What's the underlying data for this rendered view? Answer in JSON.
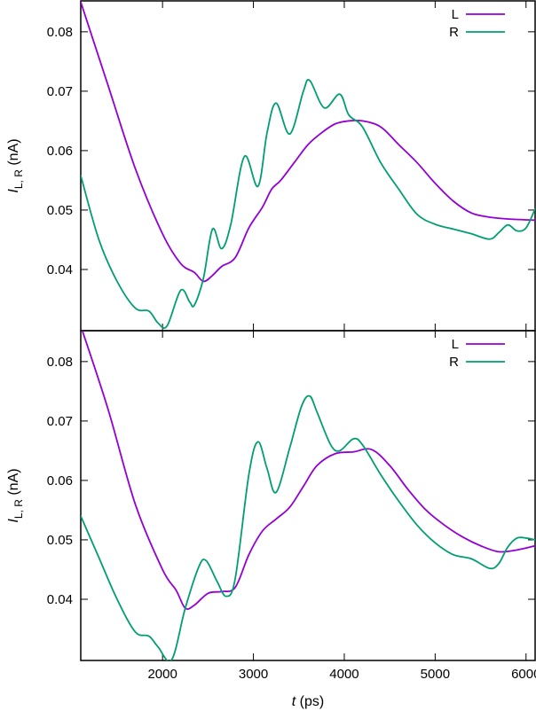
{
  "chart_data": {
    "type": "line",
    "xlabel_var": "t",
    "xlabel_unit": "(ps)",
    "ylabel_var": "I",
    "ylabel_sub": "L, R",
    "ylabel_unit": "(nA)",
    "xlim": [
      1100,
      6100
    ],
    "xticks": [
      2000,
      3000,
      4000,
      5000,
      6000
    ],
    "legend_placement": "top-right",
    "panels": [
      {
        "ylim": [
          0.0297,
          0.0852
        ],
        "yticks": [
          0.04,
          0.05,
          0.06,
          0.07,
          0.08
        ],
        "ytick_labels": [
          "0.04",
          "0.05",
          "0.06",
          "0.07",
          "0.08"
        ],
        "series": [
          {
            "name": "L",
            "color": "#9400d3",
            "points": [
              [
                1100,
                0.085
              ],
              [
                1400,
                0.071
              ],
              [
                1700,
                0.057
              ],
              [
                2000,
                0.046
              ],
              [
                2200,
                0.041
              ],
              [
                2350,
                0.0395
              ],
              [
                2450,
                0.038
              ],
              [
                2550,
                0.039
              ],
              [
                2650,
                0.0405
              ],
              [
                2800,
                0.042
              ],
              [
                2950,
                0.047
              ],
              [
                3100,
                0.0505
              ],
              [
                3200,
                0.0535
              ],
              [
                3300,
                0.055
              ],
              [
                3450,
                0.058
              ],
              [
                3600,
                0.061
              ],
              [
                3750,
                0.063
              ],
              [
                3900,
                0.0645
              ],
              [
                4050,
                0.065
              ],
              [
                4200,
                0.065
              ],
              [
                4400,
                0.064
              ],
              [
                4600,
                0.061
              ],
              [
                4800,
                0.058
              ],
              [
                5000,
                0.0545
              ],
              [
                5200,
                0.0515
              ],
              [
                5400,
                0.0495
              ],
              [
                5600,
                0.0488
              ],
              [
                5800,
                0.0485
              ],
              [
                6100,
                0.0483
              ]
            ]
          },
          {
            "name": "R",
            "color": "#009e73",
            "points": [
              [
                1100,
                0.0558
              ],
              [
                1300,
                0.045
              ],
              [
                1500,
                0.038
              ],
              [
                1700,
                0.0335
              ],
              [
                1850,
                0.033
              ],
              [
                1950,
                0.031
              ],
              [
                2050,
                0.0305
              ],
              [
                2200,
                0.0365
              ],
              [
                2300,
                0.0345
              ],
              [
                2350,
                0.034
              ],
              [
                2450,
                0.0385
              ],
              [
                2550,
                0.0468
              ],
              [
                2650,
                0.0435
              ],
              [
                2750,
                0.0475
              ],
              [
                2900,
                0.059
              ],
              [
                3050,
                0.054
              ],
              [
                3150,
                0.063
              ],
              [
                3250,
                0.068
              ],
              [
                3400,
                0.0628
              ],
              [
                3550,
                0.07
              ],
              [
                3620,
                0.0718
              ],
              [
                3780,
                0.0672
              ],
              [
                3950,
                0.0695
              ],
              [
                4050,
                0.066
              ],
              [
                4200,
                0.064
              ],
              [
                4400,
                0.058
              ],
              [
                4600,
                0.0535
              ],
              [
                4800,
                0.0493
              ],
              [
                5000,
                0.0476
              ],
              [
                5200,
                0.0468
              ],
              [
                5400,
                0.046
              ],
              [
                5600,
                0.0451
              ],
              [
                5700,
                0.0462
              ],
              [
                5800,
                0.0475
              ],
              [
                5900,
                0.0465
              ],
              [
                6000,
                0.047
              ],
              [
                6100,
                0.0502
              ]
            ]
          }
        ]
      },
      {
        "ylim": [
          0.0297,
          0.0852
        ],
        "yticks": [
          0.04,
          0.05,
          0.06,
          0.07,
          0.08
        ],
        "ytick_labels": [
          "0.04",
          "0.05",
          "0.06",
          "0.07",
          "0.08"
        ],
        "series": [
          {
            "name": "L",
            "color": "#9400d3",
            "points": [
              [
                1100,
                0.086
              ],
              [
                1400,
                0.072
              ],
              [
                1700,
                0.056
              ],
              [
                2000,
                0.045
              ],
              [
                2150,
                0.0415
              ],
              [
                2250,
                0.0385
              ],
              [
                2350,
                0.039
              ],
              [
                2500,
                0.041
              ],
              [
                2650,
                0.0413
              ],
              [
                2800,
                0.042
              ],
              [
                2950,
                0.0475
              ],
              [
                3100,
                0.0515
              ],
              [
                3250,
                0.0535
              ],
              [
                3400,
                0.0555
              ],
              [
                3550,
                0.059
              ],
              [
                3700,
                0.0625
              ],
              [
                3900,
                0.0645
              ],
              [
                4100,
                0.0648
              ],
              [
                4300,
                0.0652
              ],
              [
                4500,
                0.0625
              ],
              [
                4700,
                0.0585
              ],
              [
                4900,
                0.055
              ],
              [
                5100,
                0.0525
              ],
              [
                5300,
                0.0505
              ],
              [
                5500,
                0.049
              ],
              [
                5700,
                0.048
              ],
              [
                5900,
                0.0483
              ],
              [
                6100,
                0.049
              ]
            ]
          },
          {
            "name": "R",
            "color": "#009e73",
            "points": [
              [
                1100,
                0.054
              ],
              [
                1300,
                0.047
              ],
              [
                1500,
                0.04
              ],
              [
                1700,
                0.0345
              ],
              [
                1850,
                0.0338
              ],
              [
                1950,
                0.032
              ],
              [
                2100,
                0.0298
              ],
              [
                2250,
                0.0385
              ],
              [
                2400,
                0.0455
              ],
              [
                2480,
                0.0465
              ],
              [
                2600,
                0.043
              ],
              [
                2700,
                0.0405
              ],
              [
                2800,
                0.0435
              ],
              [
                2950,
                0.061
              ],
              [
                3050,
                0.0665
              ],
              [
                3150,
                0.062
              ],
              [
                3250,
                0.058
              ],
              [
                3400,
                0.0655
              ],
              [
                3530,
                0.0725
              ],
              [
                3620,
                0.0742
              ],
              [
                3700,
                0.0715
              ],
              [
                3850,
                0.066
              ],
              [
                3950,
                0.065
              ],
              [
                4100,
                0.067
              ],
              [
                4200,
                0.066
              ],
              [
                4400,
                0.061
              ],
              [
                4600,
                0.0565
              ],
              [
                4800,
                0.0525
              ],
              [
                5000,
                0.0495
              ],
              [
                5200,
                0.0475
              ],
              [
                5400,
                0.0468
              ],
              [
                5600,
                0.0452
              ],
              [
                5700,
                0.046
              ],
              [
                5800,
                0.0488
              ],
              [
                5900,
                0.0503
              ],
              [
                6000,
                0.0503
              ],
              [
                6100,
                0.05
              ]
            ]
          }
        ]
      }
    ]
  }
}
